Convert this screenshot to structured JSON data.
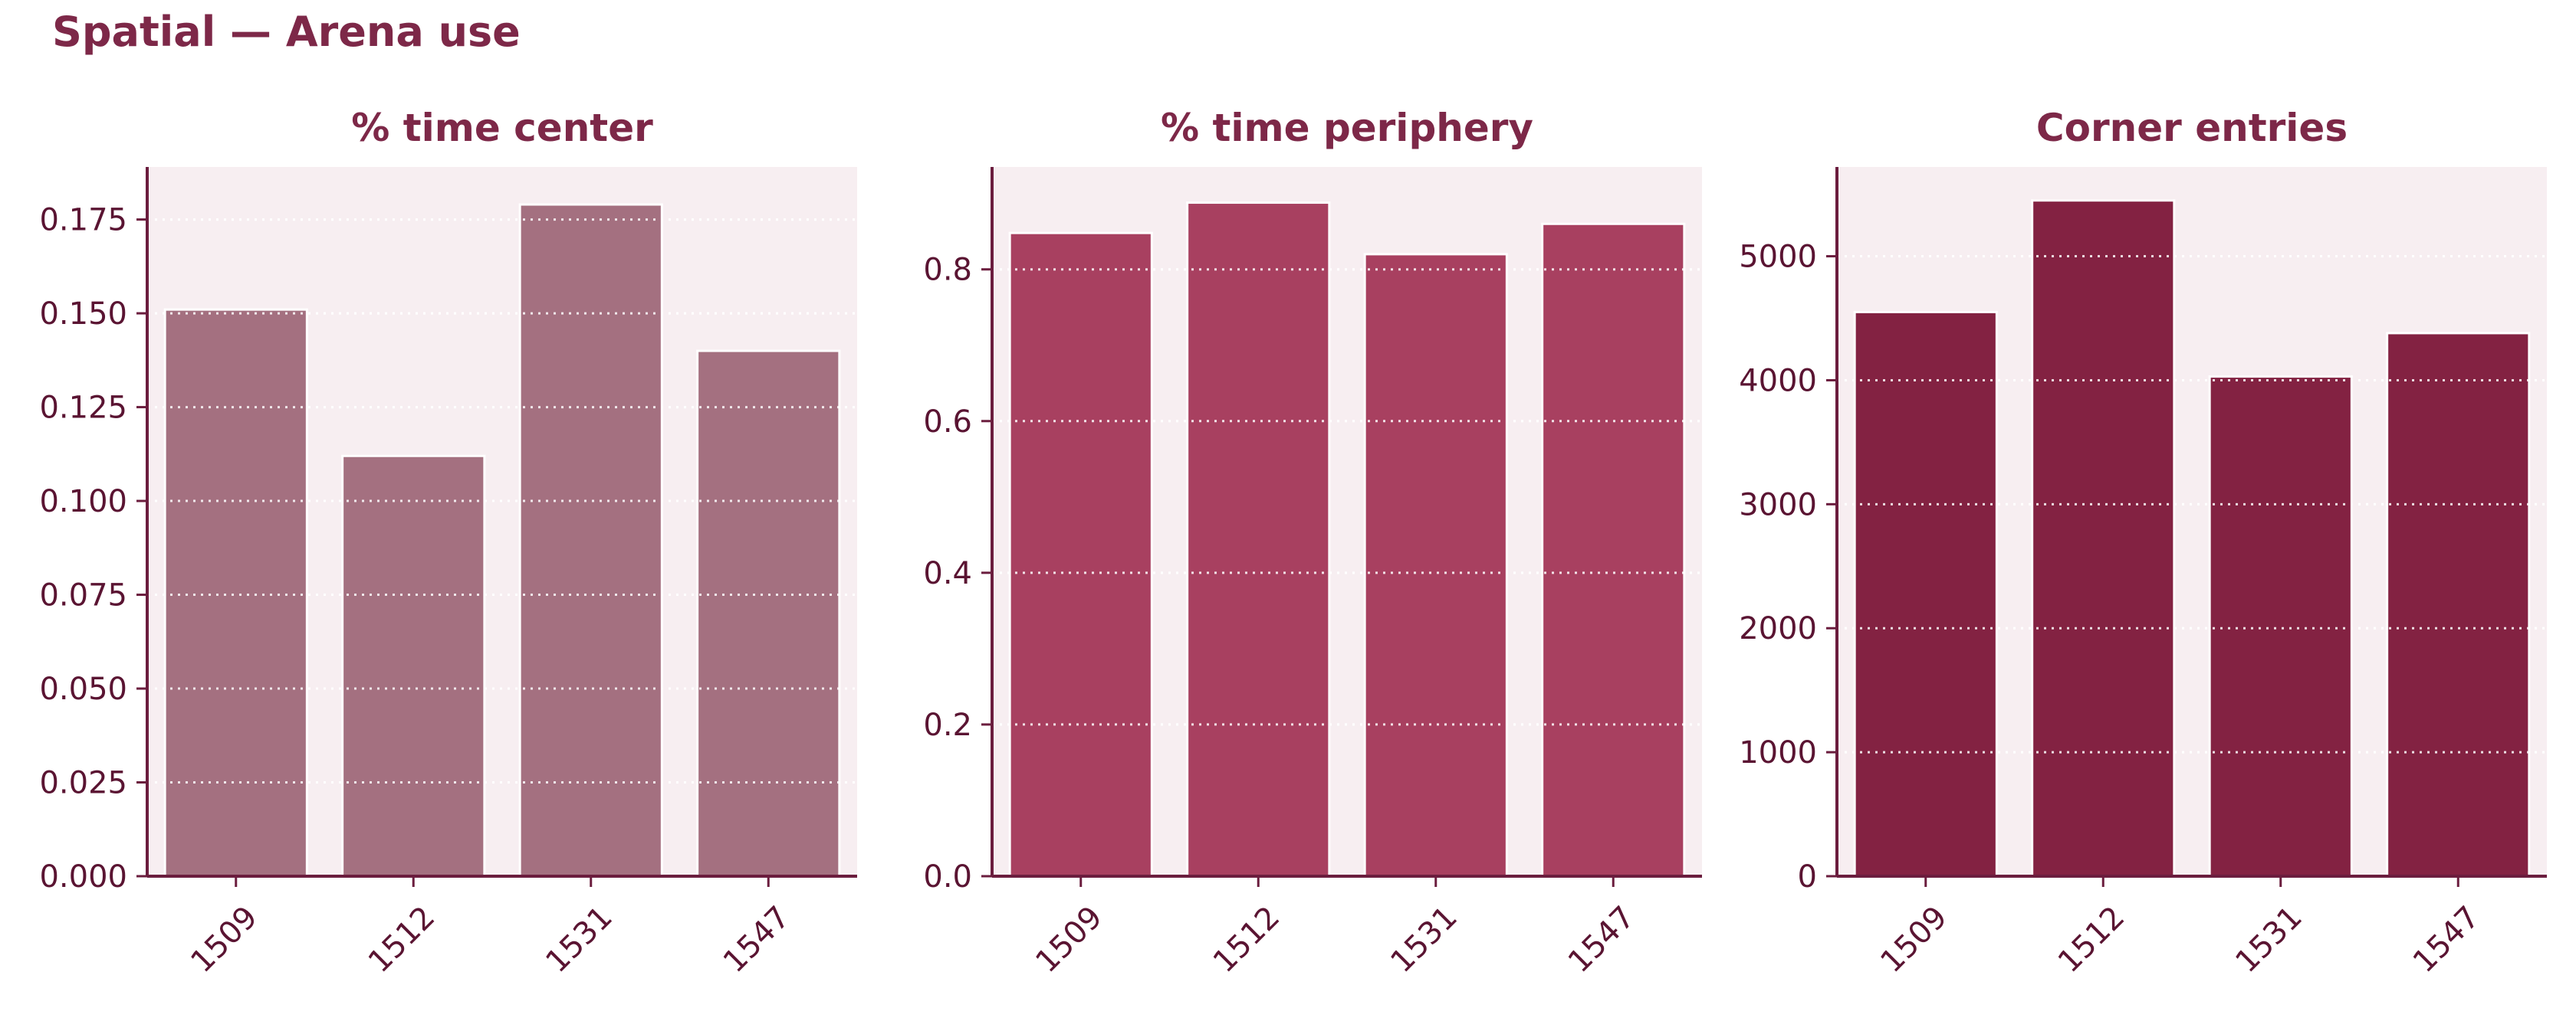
{
  "page_title": "Spatial — Arena use",
  "colors": {
    "panel_bg": "#f7eef1",
    "axis": "#6b1d3e",
    "title": "#7d2848",
    "tick_text": "#5a1432",
    "grid": "#ffffff"
  },
  "chart_data": [
    {
      "type": "bar",
      "title": "% time center",
      "categories": [
        "1509",
        "1512",
        "1531",
        "1547"
      ],
      "values": [
        0.151,
        0.112,
        0.179,
        0.14
      ],
      "ylim": [
        0,
        0.189
      ],
      "yticks": [
        0,
        0.025,
        0.05,
        0.075,
        0.1,
        0.125,
        0.15,
        0.175
      ],
      "ytick_labels": [
        "0.000",
        "0.025",
        "0.050",
        "0.075",
        "0.100",
        "0.125",
        "0.150",
        "0.175"
      ],
      "xlabel": "",
      "ylabel": "",
      "color": "#a47080",
      "grid": true
    },
    {
      "type": "bar",
      "title": "% time periphery",
      "categories": [
        "1509",
        "1512",
        "1531",
        "1547"
      ],
      "values": [
        0.848,
        0.888,
        0.82,
        0.86
      ],
      "ylim": [
        0,
        0.935
      ],
      "yticks": [
        0,
        0.2,
        0.4,
        0.6,
        0.8
      ],
      "ytick_labels": [
        "0.0",
        "0.2",
        "0.4",
        "0.6",
        "0.8"
      ],
      "xlabel": "",
      "ylabel": "",
      "color": "#a84060",
      "grid": true
    },
    {
      "type": "bar",
      "title": "Corner entries",
      "categories": [
        "1509",
        "1512",
        "1531",
        "1547"
      ],
      "values": [
        4550,
        5450,
        4030,
        4380
      ],
      "ylim": [
        0,
        5720
      ],
      "yticks": [
        0,
        1000,
        2000,
        3000,
        4000,
        5000
      ],
      "ytick_labels": [
        "0",
        "1000",
        "2000",
        "3000",
        "4000",
        "5000"
      ],
      "xlabel": "",
      "ylabel": "",
      "color": "#832242",
      "grid": true
    }
  ]
}
